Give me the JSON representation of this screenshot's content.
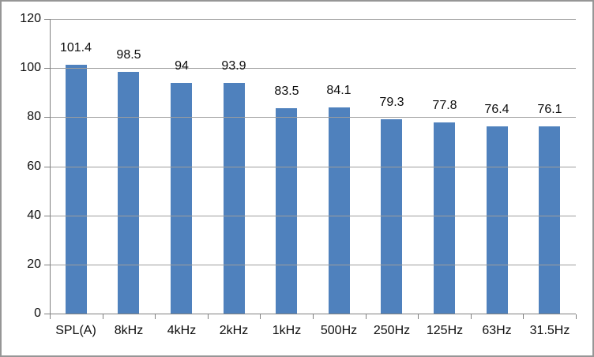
{
  "chart_data": {
    "type": "bar",
    "categories": [
      "SPL(A)",
      "8kHz",
      "4kHz",
      "2kHz",
      "1kHz",
      "500Hz",
      "250Hz",
      "125Hz",
      "63Hz",
      "31.5Hz"
    ],
    "values": [
      101.4,
      98.5,
      94,
      93.9,
      83.5,
      84.1,
      79.3,
      77.8,
      76.4,
      76.1
    ],
    "title": "",
    "xlabel": "",
    "ylabel": "",
    "ylim": [
      0,
      120
    ],
    "yticks": [
      0,
      20,
      40,
      60,
      80,
      100,
      120
    ],
    "grid": true,
    "legend": "none",
    "data_labels": true,
    "colors": {
      "bar_fill": "#4F81BD",
      "gridline": "#9D9D9D",
      "axis_line": "#808080",
      "text": "#0d0d0d",
      "frame_border": "#969696",
      "background": "#FFFFFF"
    }
  }
}
